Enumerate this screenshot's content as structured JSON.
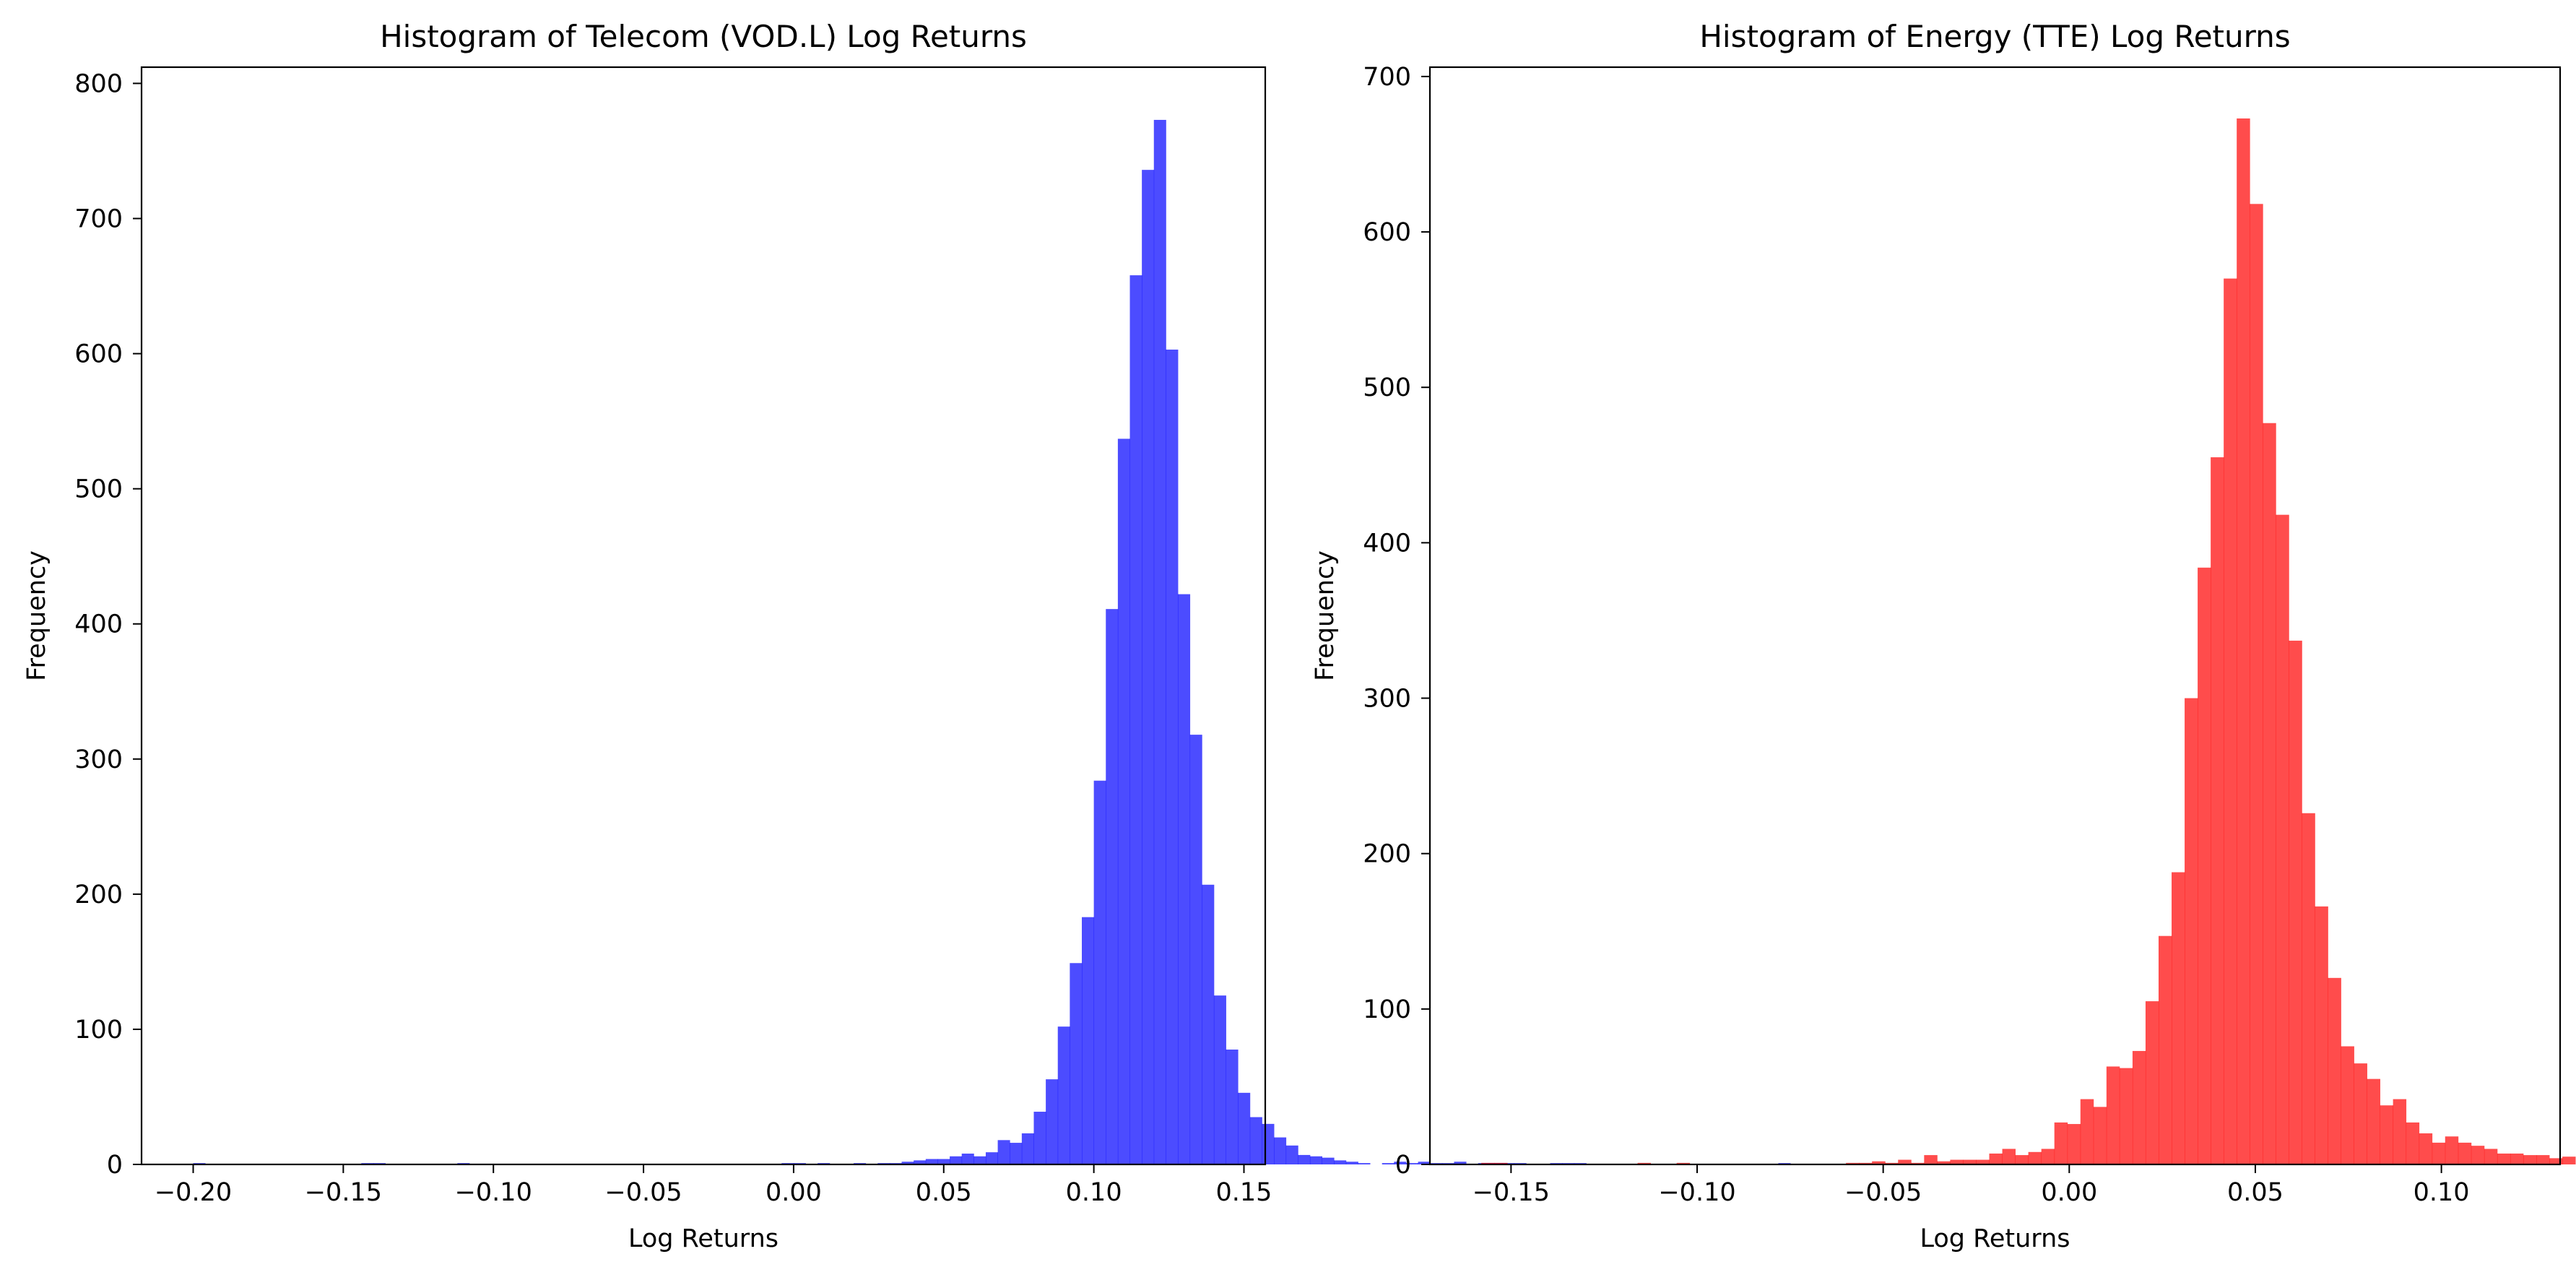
{
  "chart_data": [
    {
      "type": "bar",
      "title": "Histogram of Telecom (VOD.L) Log Returns",
      "xlabel": "Log Returns",
      "ylabel": "Frequency",
      "xlim": [
        -0.2172,
        0.1571
      ],
      "ylim": [
        0,
        812
      ],
      "bar_color": "#0000ff",
      "bar_opacity": 0.7,
      "grid": false,
      "xticks": [
        -0.2,
        -0.15,
        -0.1,
        -0.05,
        0.0,
        0.05,
        0.1,
        0.15
      ],
      "xtick_labels": [
        "−0.20",
        "−0.15",
        "−0.10",
        "−0.05",
        "0.00",
        "0.05",
        "0.10",
        "0.15"
      ],
      "yticks": [
        0,
        100,
        200,
        300,
        400,
        500,
        600,
        700,
        800
      ],
      "ytick_labels": [
        "0",
        "100",
        "200",
        "300",
        "400",
        "500",
        "600",
        "700",
        "800"
      ],
      "bin_start": -0.2,
      "bin_width": 0.004,
      "values": [
        1,
        0,
        0,
        0,
        0,
        0,
        0,
        0,
        0,
        0,
        0,
        0,
        0,
        0,
        1,
        1,
        0,
        0,
        0,
        0,
        0,
        0,
        1,
        0,
        0,
        0,
        0,
        0,
        0,
        0,
        0,
        0,
        0,
        0,
        0,
        0,
        0,
        0,
        0,
        0,
        0,
        0,
        0,
        0,
        0,
        0,
        0,
        0,
        0,
        1,
        1,
        0,
        1,
        0,
        0,
        1,
        0,
        1,
        1,
        2,
        3,
        4,
        4,
        6,
        8,
        6,
        9,
        18,
        16,
        23,
        39,
        63,
        102,
        149,
        183,
        284,
        411,
        537,
        658,
        736,
        773,
        603,
        422,
        318,
        207,
        125,
        85,
        53,
        35,
        30,
        20,
        14,
        7,
        6,
        5,
        3,
        2,
        1,
        0,
        1,
        2,
        1,
        2,
        1,
        1,
        2,
        0,
        1,
        1,
        1,
        1,
        0,
        0,
        1,
        1,
        1,
        0,
        0,
        0,
        0,
        0,
        0,
        0,
        0,
        0,
        0,
        0,
        0,
        0,
        0,
        0,
        0,
        1,
        0,
        0
      ]
    },
    {
      "type": "bar",
      "title": "Histogram of Energy (TTE) Log Returns",
      "xlabel": "Log Returns",
      "ylabel": "Frequency",
      "xlim": [
        -0.1718,
        0.1319
      ],
      "ylim": [
        0,
        706
      ],
      "bar_color": "#ff0000",
      "bar_opacity": 0.7,
      "grid": false,
      "xticks": [
        -0.15,
        -0.1,
        -0.05,
        0.0,
        0.05,
        0.1
      ],
      "xtick_labels": [
        "−0.15",
        "−0.10",
        "−0.05",
        "0.00",
        "0.05",
        "0.10"
      ],
      "yticks": [
        0,
        100,
        200,
        300,
        400,
        500,
        600,
        700
      ],
      "ytick_labels": [
        "0",
        "100",
        "200",
        "300",
        "400",
        "500",
        "600",
        "700"
      ],
      "bin_start": -0.158,
      "bin_width": 0.0035,
      "values": [
        1,
        1,
        0,
        0,
        0,
        0,
        0,
        0,
        0,
        0,
        0,
        0,
        1,
        0,
        0,
        1,
        0,
        0,
        0,
        0,
        0,
        0,
        0,
        0,
        0,
        0,
        0,
        0,
        1,
        1,
        2,
        1,
        3,
        1,
        6,
        2,
        3,
        3,
        3,
        7,
        10,
        6,
        8,
        10,
        27,
        26,
        42,
        37,
        63,
        62,
        73,
        105,
        147,
        188,
        300,
        384,
        455,
        570,
        673,
        618,
        477,
        418,
        337,
        226,
        166,
        120,
        76,
        65,
        55,
        38,
        42,
        27,
        20,
        14,
        18,
        14,
        12,
        10,
        7,
        7,
        6,
        6,
        4,
        5,
        0,
        0,
        2,
        3,
        1,
        0,
        0,
        0,
        0,
        0,
        0,
        0,
        0,
        0,
        0,
        0,
        0,
        0,
        0,
        1
      ]
    }
  ]
}
